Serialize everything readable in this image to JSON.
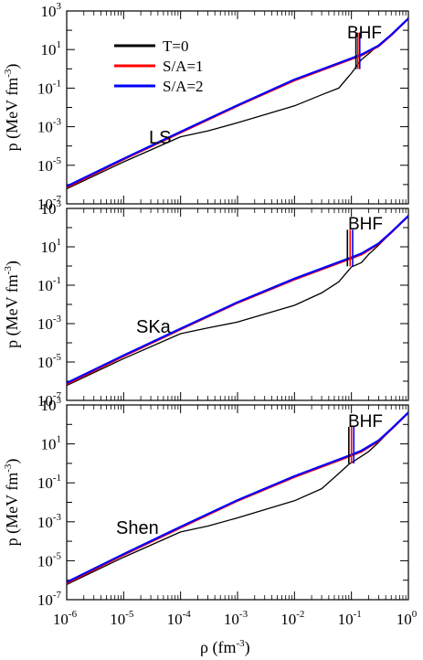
{
  "chart_data": [
    {
      "type": "line",
      "panel_label": "LS",
      "region_label": "BHF",
      "xscale": "log",
      "yscale": "log",
      "xlim": [
        1e-06,
        1
      ],
      "ylim": [
        1e-07,
        1000
      ],
      "ylabel": "p (MeV fm^-3)",
      "x_ticks": [
        "10-6",
        "10-5",
        "10-4",
        "10-3",
        "10-2",
        "10-1",
        "100"
      ],
      "y_ticks": [
        "10-7",
        "10-5",
        "10-3",
        "10-1",
        "101",
        "103"
      ],
      "series": [
        {
          "name": "T=0",
          "color": "#000000",
          "x": [
            1e-06,
            1e-05,
            0.0001,
            0.0003,
            0.001,
            0.01,
            0.03,
            0.06,
            0.1,
            0.15,
            0.2,
            0.3,
            0.5,
            1.0
          ],
          "y": [
            6e-07,
            1.5e-05,
            0.0003,
            0.0006,
            0.0016,
            0.012,
            0.045,
            0.1,
            0.6,
            3,
            6,
            17,
            60,
            400
          ]
        },
        {
          "name": "S/A=1",
          "color": "#ff0000",
          "x": [
            1e-06,
            1e-05,
            0.0001,
            0.001,
            0.01,
            0.1,
            0.15,
            0.3,
            0.5,
            1.0
          ],
          "y": [
            7e-07,
            2e-05,
            0.0005,
            0.012,
            0.25,
            3.2,
            5,
            15,
            55,
            400
          ]
        },
        {
          "name": "S/A=2",
          "color": "#0000ff",
          "x": [
            1e-06,
            1e-05,
            0.0001,
            0.001,
            0.01,
            0.1,
            0.15,
            0.3,
            0.5,
            1.0
          ],
          "y": [
            8e-07,
            2.2e-05,
            0.00055,
            0.013,
            0.28,
            3.5,
            5.5,
            16,
            58,
            410
          ]
        }
      ],
      "transition_x": [
        0.12,
        0.13,
        0.14
      ],
      "legend": "upper-left"
    },
    {
      "type": "line",
      "panel_label": "SKa",
      "region_label": "BHF",
      "xscale": "log",
      "yscale": "log",
      "xlim": [
        1e-06,
        1
      ],
      "ylim": [
        1e-07,
        1000
      ],
      "ylabel": "p (MeV fm^-3)",
      "x_ticks": [
        "10-6",
        "10-5",
        "10-4",
        "10-3",
        "10-2",
        "10-1",
        "100"
      ],
      "y_ticks": [
        "10-7",
        "10-5",
        "10-3",
        "10-1",
        "101",
        "103"
      ],
      "series": [
        {
          "name": "T=0",
          "color": "#000000",
          "x": [
            1e-06,
            1e-05,
            0.0001,
            0.0003,
            0.001,
            0.01,
            0.03,
            0.06,
            0.1,
            0.15,
            0.2,
            0.3,
            0.5,
            1.0
          ],
          "y": [
            6e-07,
            1.5e-05,
            0.0003,
            0.0006,
            0.0012,
            0.009,
            0.04,
            0.15,
            0.9,
            1.5,
            4,
            12,
            55,
            400
          ]
        },
        {
          "name": "S/A=1",
          "color": "#ff0000",
          "x": [
            1e-06,
            1e-05,
            0.0001,
            0.001,
            0.01,
            0.1,
            0.15,
            0.3,
            0.5,
            1.0
          ],
          "y": [
            7e-07,
            2e-05,
            0.0005,
            0.012,
            0.2,
            2.5,
            4,
            14,
            55,
            400
          ]
        },
        {
          "name": "S/A=2",
          "color": "#0000ff",
          "x": [
            1e-06,
            1e-05,
            0.0001,
            0.001,
            0.01,
            0.1,
            0.15,
            0.3,
            0.5,
            1.0
          ],
          "y": [
            8e-07,
            2.2e-05,
            0.00055,
            0.013,
            0.22,
            2.8,
            4.5,
            15,
            58,
            410
          ]
        }
      ],
      "transition_x": [
        0.085,
        0.095,
        0.105
      ]
    },
    {
      "type": "line",
      "panel_label": "Shen",
      "region_label": "BHF",
      "xscale": "log",
      "yscale": "log",
      "xlim": [
        1e-06,
        1
      ],
      "ylim": [
        1e-07,
        1000
      ],
      "xlabel": "ρ (fm^-3)",
      "ylabel": "p (MeV fm^-3)",
      "x_ticks": [
        "10-6",
        "10-5",
        "10-4",
        "10-3",
        "10-2",
        "10-1",
        "100"
      ],
      "y_ticks": [
        "10-7",
        "10-5",
        "10-3",
        "10-1",
        "101",
        "103"
      ],
      "series": [
        {
          "name": "T=0",
          "color": "#000000",
          "x": [
            1e-06,
            1e-05,
            0.0001,
            0.0003,
            0.001,
            0.01,
            0.03,
            0.06,
            0.09,
            0.12,
            0.2,
            0.3,
            0.5,
            1.0
          ],
          "y": [
            6e-07,
            1.5e-05,
            0.0003,
            0.0006,
            0.0016,
            0.012,
            0.05,
            0.3,
            0.9,
            1.5,
            4,
            12,
            55,
            400
          ]
        },
        {
          "name": "S/A=1",
          "color": "#ff0000",
          "x": [
            1e-06,
            1e-05,
            0.0001,
            0.001,
            0.01,
            0.1,
            0.15,
            0.3,
            0.5,
            1.0
          ],
          "y": [
            7e-07,
            2e-05,
            0.0005,
            0.012,
            0.2,
            2.5,
            4,
            14,
            55,
            400
          ]
        },
        {
          "name": "S/A=2",
          "color": "#0000ff",
          "x": [
            1e-06,
            1e-05,
            0.0001,
            0.001,
            0.01,
            0.1,
            0.15,
            0.3,
            0.5,
            1.0
          ],
          "y": [
            8e-07,
            2.2e-05,
            0.00055,
            0.013,
            0.22,
            2.8,
            4.5,
            15,
            58,
            410
          ]
        }
      ],
      "transition_x": [
        0.09,
        0.1,
        0.11
      ]
    }
  ]
}
